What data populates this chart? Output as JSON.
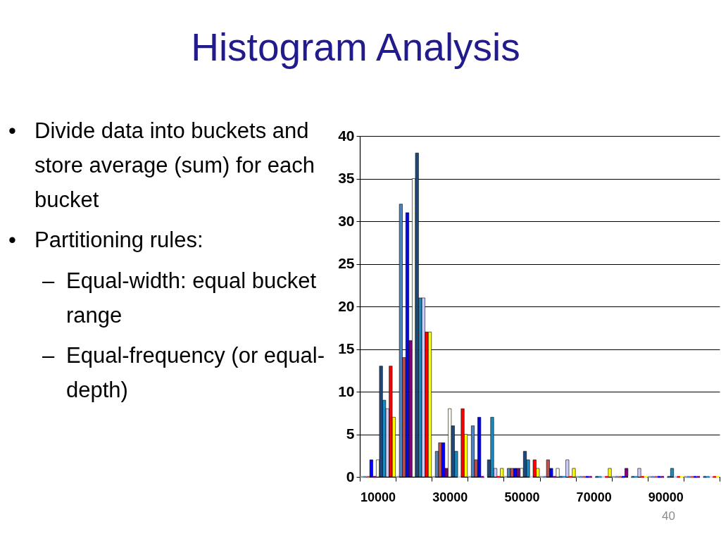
{
  "chart_data": {
    "type": "bar",
    "title": "Histogram Analysis",
    "annotations": [
      "• Divide data into buckets and store average (sum) for each bucket",
      "• Partitioning rules:",
      "– Equal-width: equal bucket range",
      "– Equal-frequency (or equal-depth)",
      "40"
    ],
    "categories": [
      "10000",
      null,
      "30000",
      null,
      "50000",
      null,
      "70000",
      null,
      "90000",
      null
    ],
    "series": [
      {
        "color": "#999999",
        "values": [
          0,
          0,
          0,
          0,
          0,
          0,
          0,
          0,
          0,
          0
        ]
      },
      {
        "color": "#4f81bd",
        "values": [
          0,
          32,
          3,
          6,
          1,
          0,
          0,
          0,
          0,
          0
        ]
      },
      {
        "color": "#c0504d",
        "values": [
          0,
          14,
          4,
          2,
          1,
          2,
          0,
          0,
          0,
          0
        ]
      },
      {
        "color": "#0000ff",
        "values": [
          2,
          31,
          4,
          7,
          1,
          1,
          0,
          0,
          0,
          0
        ]
      },
      {
        "color": "#800080",
        "values": [
          0,
          16,
          1,
          0,
          1,
          0,
          0,
          1,
          0,
          0
        ]
      },
      {
        "color": "#fffff0",
        "values": [
          2,
          35,
          8,
          0,
          1,
          1,
          0,
          0,
          0,
          0
        ]
      },
      {
        "color": "#1f497d",
        "values": [
          13,
          38,
          6,
          2,
          3,
          0,
          0,
          0,
          0,
          0
        ]
      },
      {
        "color": "#1a8ac0",
        "values": [
          9,
          21,
          3,
          7,
          2,
          0,
          0,
          0,
          1,
          0
        ]
      },
      {
        "color": "#ccccff",
        "values": [
          8,
          21,
          0,
          1,
          0,
          2,
          0,
          1,
          0,
          0
        ]
      },
      {
        "color": "#ff0000",
        "values": [
          13,
          17,
          8,
          0,
          2,
          0,
          0,
          0,
          0,
          0
        ]
      },
      {
        "color": "#ffff00",
        "values": [
          7,
          17,
          5,
          1,
          1,
          1,
          1,
          0,
          0,
          0
        ]
      }
    ],
    "ylim": [
      0,
      40
    ],
    "yticks": [
      0,
      5,
      10,
      15,
      20,
      25,
      30,
      35,
      40
    ],
    "grid": "y"
  }
}
